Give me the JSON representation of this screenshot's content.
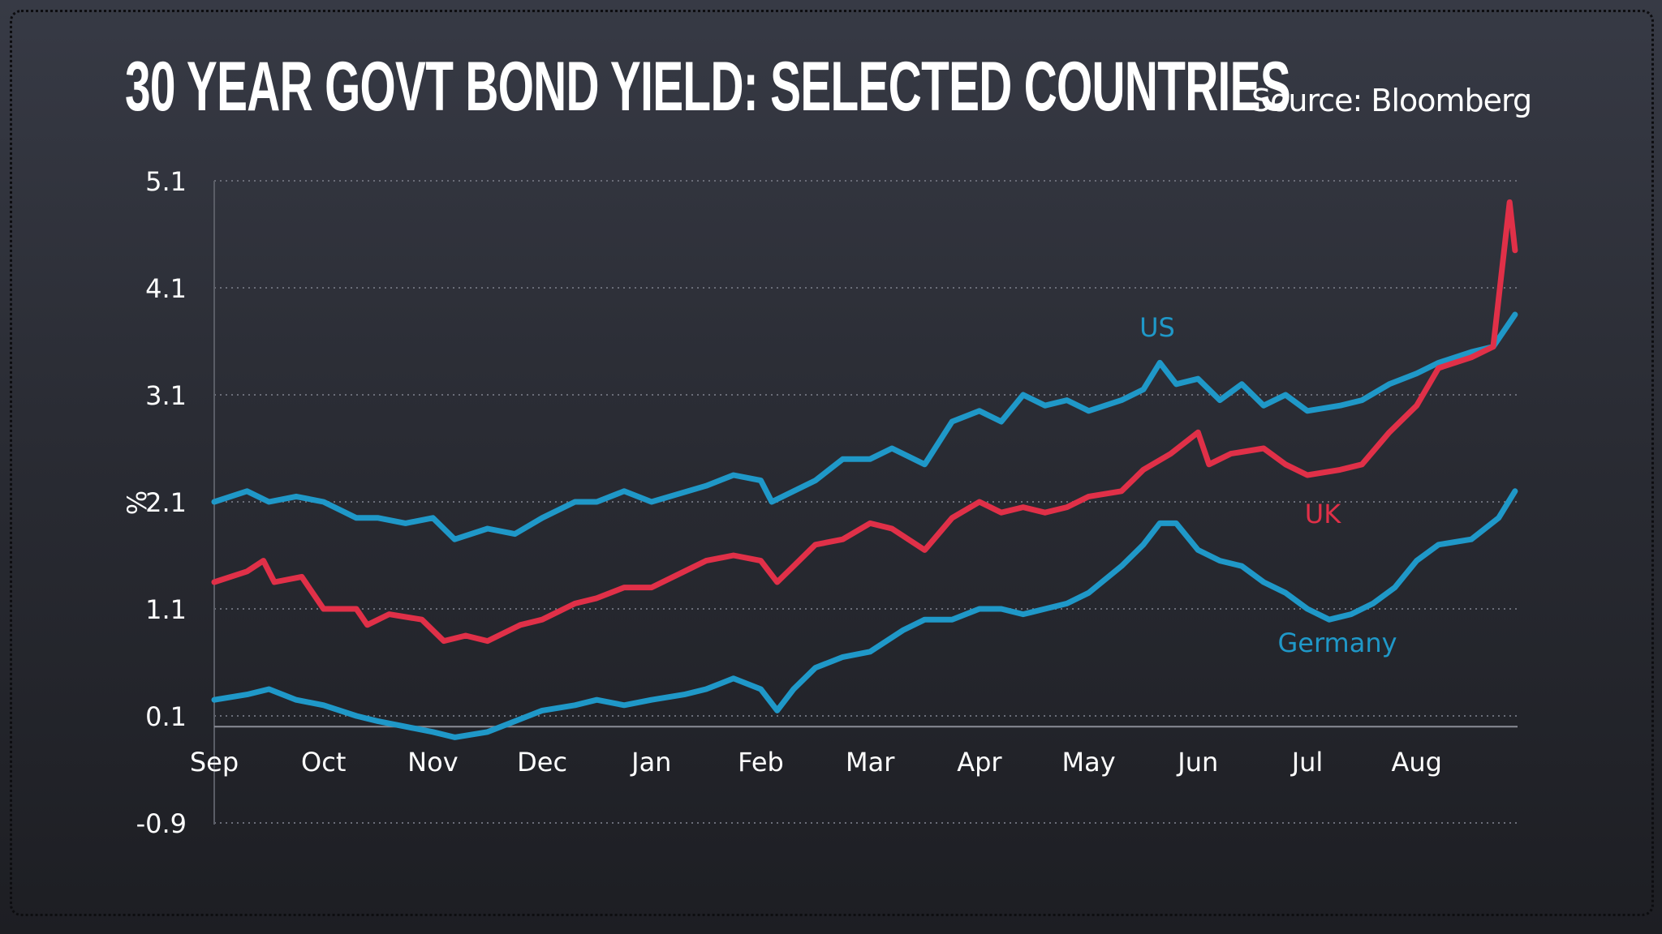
{
  "title": "30 YEAR GOVT BOND YIELD: SELECTED COUNTRIES",
  "source": "Source: Bloomberg",
  "chart_data": {
    "type": "line",
    "title": "30 YEAR GOVT BOND YIELD: SELECTED COUNTRIES",
    "ylabel": "%",
    "xlabel": "",
    "ylim": [
      -0.9,
      5.1
    ],
    "yticks": [
      "5.1",
      "4.1",
      "3.1",
      "2.1",
      "1.1",
      "0.1",
      "-0.9"
    ],
    "ytick_values": [
      5.1,
      4.1,
      3.1,
      2.1,
      1.1,
      0.1,
      -0.9
    ],
    "categories": [
      "Sep",
      "Oct",
      "Nov",
      "Dec",
      "Jan",
      "Feb",
      "Mar",
      "Apr",
      "May",
      "Jun",
      "Jul",
      "Aug"
    ],
    "grid": true,
    "series": [
      {
        "name": "US",
        "color": "#1f98c8",
        "x": [
          0,
          0.3,
          0.5,
          0.75,
          1,
          1.3,
          1.5,
          1.75,
          2,
          2.2,
          2.5,
          2.75,
          3,
          3.3,
          3.5,
          3.75,
          4,
          4.5,
          4.75,
          5,
          5.1,
          5.5,
          5.75,
          6,
          6.2,
          6.5,
          6.75,
          7,
          7.2,
          7.4,
          7.6,
          7.8,
          8,
          8.3,
          8.5,
          8.65,
          8.8,
          9,
          9.2,
          9.4,
          9.6,
          9.8,
          10,
          10.3,
          10.5,
          10.75,
          11,
          11.2,
          11.5,
          11.7,
          11.9
        ],
        "y": [
          2.1,
          2.2,
          2.1,
          2.15,
          2.1,
          1.95,
          1.95,
          1.9,
          1.95,
          1.75,
          1.85,
          1.8,
          1.95,
          2.1,
          2.1,
          2.2,
          2.1,
          2.25,
          2.35,
          2.3,
          2.1,
          2.3,
          2.5,
          2.5,
          2.6,
          2.45,
          2.85,
          2.95,
          2.85,
          3.1,
          3.0,
          3.05,
          2.95,
          3.05,
          3.15,
          3.4,
          3.2,
          3.25,
          3.05,
          3.2,
          3.0,
          3.1,
          2.95,
          3.0,
          3.05,
          3.2,
          3.3,
          3.4,
          3.5,
          3.55,
          3.85
        ]
      },
      {
        "name": "UK",
        "color": "#e03048",
        "x": [
          0,
          0.3,
          0.45,
          0.55,
          0.8,
          1,
          1.3,
          1.4,
          1.6,
          1.9,
          2.1,
          2.3,
          2.5,
          2.8,
          3,
          3.3,
          3.5,
          3.75,
          4,
          4.3,
          4.5,
          4.75,
          5,
          5.15,
          5.3,
          5.5,
          5.75,
          6,
          6.2,
          6.5,
          6.75,
          7,
          7.2,
          7.4,
          7.6,
          7.8,
          8,
          8.3,
          8.5,
          8.75,
          9,
          9.1,
          9.3,
          9.6,
          9.8,
          10,
          10.3,
          10.5,
          10.75,
          11,
          11.2,
          11.5,
          11.7,
          11.85,
          11.9
        ],
        "y": [
          1.35,
          1.45,
          1.55,
          1.35,
          1.4,
          1.1,
          1.1,
          0.95,
          1.05,
          1.0,
          0.8,
          0.85,
          0.8,
          0.95,
          1.0,
          1.15,
          1.2,
          1.3,
          1.3,
          1.45,
          1.55,
          1.6,
          1.55,
          1.35,
          1.5,
          1.7,
          1.75,
          1.9,
          1.85,
          1.65,
          1.95,
          2.1,
          2.0,
          2.05,
          2.0,
          2.05,
          2.15,
          2.2,
          2.4,
          2.55,
          2.75,
          2.45,
          2.55,
          2.6,
          2.45,
          2.35,
          2.4,
          2.45,
          2.75,
          3.0,
          3.35,
          3.45,
          3.55,
          4.9,
          4.45
        ]
      },
      {
        "name": "Germany",
        "color": "#1f98c8",
        "x": [
          0,
          0.3,
          0.5,
          0.75,
          1,
          1.3,
          1.5,
          1.75,
          2,
          2.2,
          2.5,
          2.75,
          3,
          3.3,
          3.5,
          3.75,
          4,
          4.3,
          4.5,
          4.75,
          5,
          5.15,
          5.3,
          5.5,
          5.75,
          6,
          6.3,
          6.5,
          6.75,
          7,
          7.2,
          7.4,
          7.6,
          7.8,
          8,
          8.3,
          8.5,
          8.65,
          8.8,
          9,
          9.2,
          9.4,
          9.6,
          9.8,
          10,
          10.2,
          10.4,
          10.6,
          10.8,
          11,
          11.2,
          11.5,
          11.75,
          11.9
        ],
        "y": [
          0.25,
          0.3,
          0.35,
          0.25,
          0.2,
          0.1,
          0.05,
          0.0,
          -0.05,
          -0.1,
          -0.05,
          0.05,
          0.15,
          0.2,
          0.25,
          0.2,
          0.25,
          0.3,
          0.35,
          0.45,
          0.35,
          0.15,
          0.35,
          0.55,
          0.65,
          0.7,
          0.9,
          1.0,
          1.0,
          1.1,
          1.1,
          1.05,
          1.1,
          1.15,
          1.25,
          1.5,
          1.7,
          1.9,
          1.9,
          1.65,
          1.55,
          1.5,
          1.35,
          1.25,
          1.1,
          1.0,
          1.05,
          1.15,
          1.3,
          1.55,
          1.7,
          1.75,
          1.95,
          2.2
        ]
      }
    ]
  }
}
